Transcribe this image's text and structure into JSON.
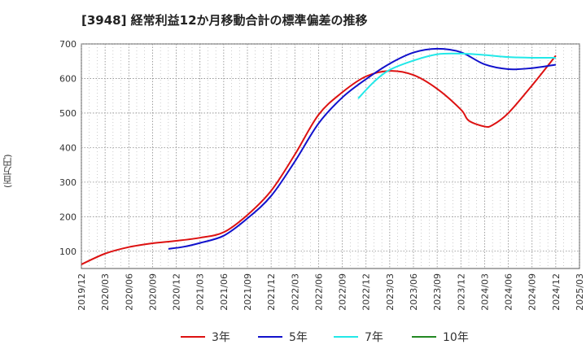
{
  "chart_data": {
    "type": "line",
    "title": "[3948]  経常利益12か月移動合計の標準偏差の推移",
    "ylabel": "(百万円)",
    "xlabel": "",
    "ylim": [
      50,
      700
    ],
    "yticks": [
      100,
      200,
      300,
      400,
      500,
      600,
      700
    ],
    "xticks": [
      "2019/12",
      "2020/03",
      "2020/06",
      "2020/09",
      "2020/12",
      "2021/03",
      "2021/06",
      "2021/09",
      "2021/12",
      "2022/03",
      "2022/06",
      "2022/09",
      "2022/12",
      "2023/03",
      "2023/06",
      "2023/09",
      "2023/12",
      "2024/03",
      "2024/06",
      "2024/09",
      "2024/12",
      "2025/03"
    ],
    "grid": true,
    "legend_position": "bottom",
    "series": [
      {
        "name": "3年",
        "color": "#dd1111",
        "x": [
          "2019/12",
          "2020/03",
          "2020/06",
          "2020/09",
          "2020/12",
          "2021/03",
          "2021/06",
          "2021/09",
          "2021/12",
          "2022/03",
          "2022/06",
          "2022/09",
          "2022/12",
          "2023/03",
          "2023/06",
          "2023/09",
          "2023/12",
          "2024/01",
          "2024/03",
          "2024/04",
          "2024/06",
          "2024/09",
          "2024/12"
        ],
        "y": [
          62,
          93,
          112,
          123,
          130,
          139,
          155,
          205,
          275,
          380,
          495,
          560,
          606,
          622,
          610,
          570,
          510,
          478,
          461,
          465,
          500,
          580,
          666
        ]
      },
      {
        "name": "5年",
        "color": "#1111cc",
        "x": [
          "2020/11",
          "2021/01",
          "2021/03",
          "2021/06",
          "2021/09",
          "2021/12",
          "2022/03",
          "2022/06",
          "2022/09",
          "2022/12",
          "2023/03",
          "2023/06",
          "2023/09",
          "2023/12",
          "2024/03",
          "2024/06",
          "2024/09",
          "2024/12"
        ],
        "y": [
          107,
          113,
          124,
          145,
          195,
          260,
          360,
          470,
          545,
          598,
          643,
          675,
          686,
          676,
          641,
          627,
          630,
          640
        ]
      },
      {
        "name": "7年",
        "color": "#22e8e8",
        "x": [
          "2022/11",
          "2023/01",
          "2023/03",
          "2023/06",
          "2023/09",
          "2023/12",
          "2024/03",
          "2024/06",
          "2024/09",
          "2024/12"
        ],
        "y": [
          542,
          590,
          625,
          652,
          670,
          672,
          668,
          662,
          660,
          660
        ]
      },
      {
        "name": "10年",
        "color": "#228822",
        "x": [],
        "y": []
      }
    ]
  }
}
